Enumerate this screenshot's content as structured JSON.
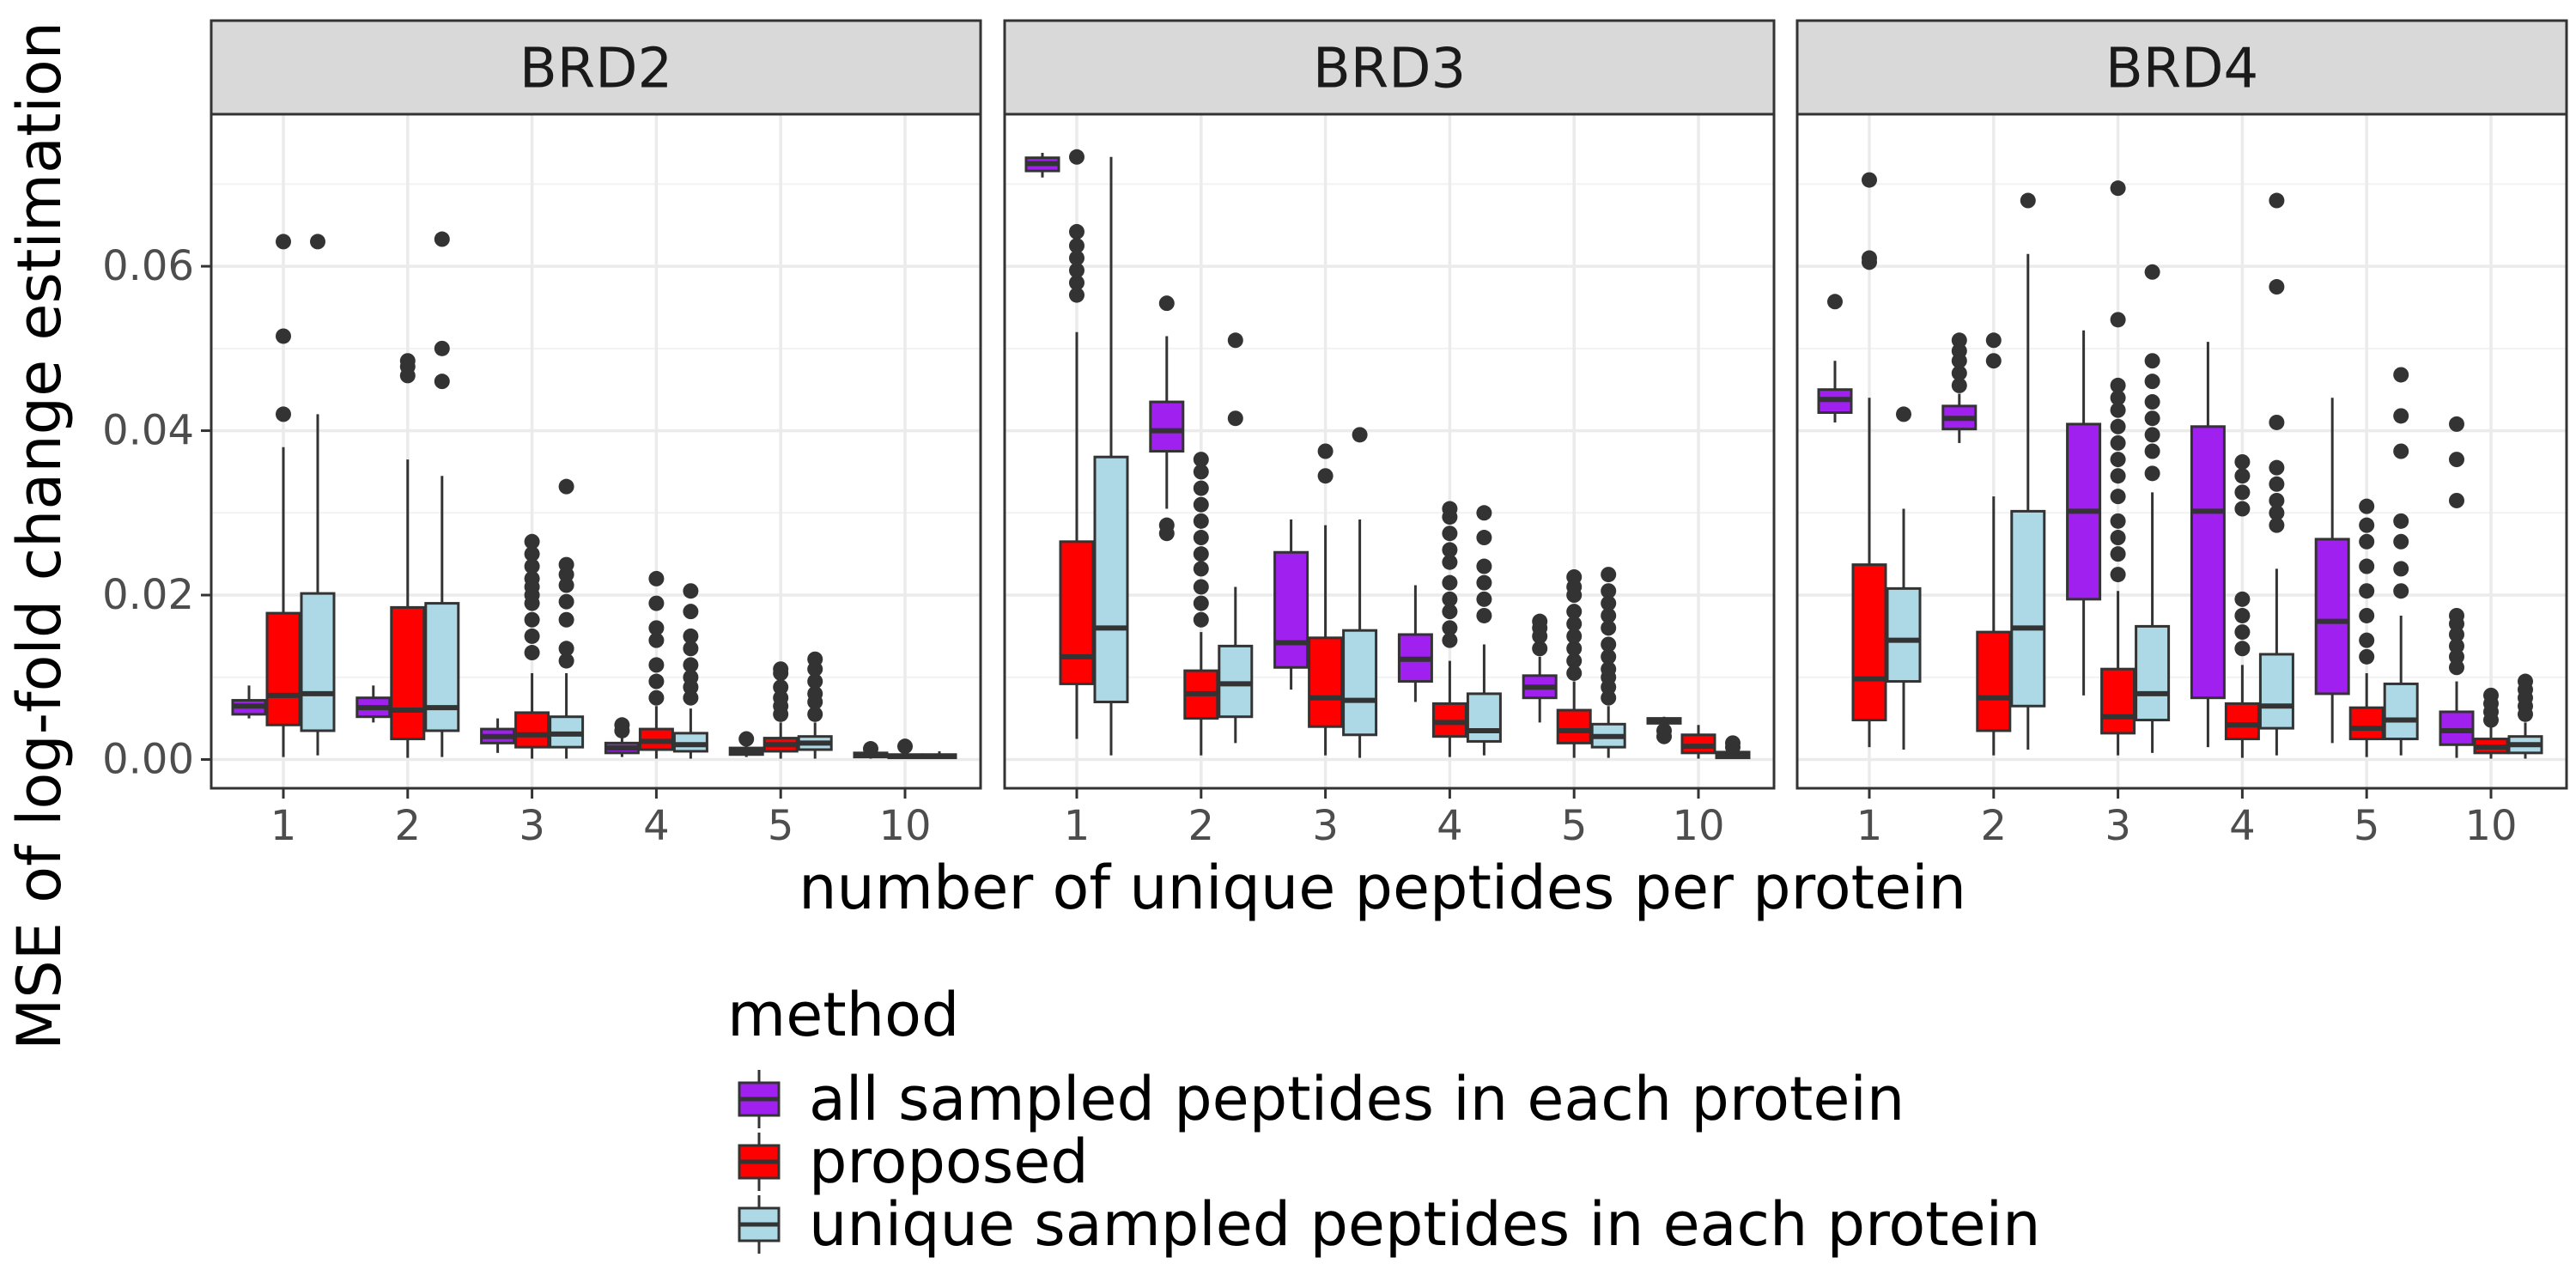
{
  "chart_data": {
    "type": "boxplot",
    "xlabel": "number of unique peptides per protein",
    "ylabel": "MSE of log-fold change estimation",
    "ylim": [
      -0.0035,
      0.0785
    ],
    "yticks": [
      0,
      0.02,
      0.04,
      0.06
    ],
    "ytick_labels": [
      "0.00",
      "0.02",
      "0.04",
      "0.06"
    ],
    "categories": [
      "1",
      "2",
      "3",
      "4",
      "5",
      "10"
    ],
    "legend": {
      "title": "method",
      "placement": "bottom",
      "entries": [
        {
          "label": "all sampled peptides in each protein",
          "color": "#A020F0"
        },
        {
          "label": "proposed",
          "color": "#FF0000"
        },
        {
          "label": "unique sampled peptides in each protein",
          "color": "#ADD8E6"
        }
      ]
    },
    "grid": true,
    "panels": [
      {
        "title": "BRD2",
        "boxes": [
          {
            "cat": "1",
            "method": 0,
            "q1": 0.0055,
            "med": 0.0065,
            "q3": 0.0072,
            "wlo": 0.005,
            "whi": 0.009,
            "out": []
          },
          {
            "cat": "1",
            "method": 1,
            "q1": 0.0042,
            "med": 0.0078,
            "q3": 0.0178,
            "wlo": 0.0003,
            "whi": 0.038,
            "out": [
              0.042,
              0.0515,
              0.063
            ]
          },
          {
            "cat": "1",
            "method": 2,
            "q1": 0.0035,
            "med": 0.008,
            "q3": 0.0202,
            "wlo": 0.0005,
            "whi": 0.042,
            "out": [
              0.063
            ]
          },
          {
            "cat": "2",
            "method": 0,
            "q1": 0.0052,
            "med": 0.0063,
            "q3": 0.0075,
            "wlo": 0.0045,
            "whi": 0.009,
            "out": []
          },
          {
            "cat": "2",
            "method": 1,
            "q1": 0.0025,
            "med": 0.006,
            "q3": 0.0185,
            "wlo": 0.0002,
            "whi": 0.0365,
            "out": [
              0.0467,
              0.0478,
              0.0485
            ]
          },
          {
            "cat": "2",
            "method": 2,
            "q1": 0.0035,
            "med": 0.0063,
            "q3": 0.019,
            "wlo": 0.0003,
            "whi": 0.0345,
            "out": [
              0.046,
              0.05,
              0.0633
            ]
          },
          {
            "cat": "3",
            "method": 0,
            "q1": 0.002,
            "med": 0.0028,
            "q3": 0.0037,
            "wlo": 0.0008,
            "whi": 0.005,
            "out": []
          },
          {
            "cat": "3",
            "method": 1,
            "q1": 0.0015,
            "med": 0.003,
            "q3": 0.0057,
            "wlo": 0.0001,
            "whi": 0.0105,
            "out": [
              0.013,
              0.015,
              0.017,
              0.019,
              0.02,
              0.021,
              0.022,
              0.0235,
              0.025,
              0.0265
            ]
          },
          {
            "cat": "3",
            "method": 2,
            "q1": 0.0015,
            "med": 0.0031,
            "q3": 0.0052,
            "wlo": 0.0001,
            "whi": 0.0105,
            "out": [
              0.012,
              0.0135,
              0.017,
              0.0192,
              0.0212,
              0.0225,
              0.0237,
              0.0332
            ]
          },
          {
            "cat": "4",
            "method": 0,
            "q1": 0.0008,
            "med": 0.0014,
            "q3": 0.002,
            "wlo": 0.0003,
            "whi": 0.003,
            "out": [
              0.0035,
              0.0042
            ]
          },
          {
            "cat": "4",
            "method": 1,
            "q1": 0.0012,
            "med": 0.0022,
            "q3": 0.0037,
            "wlo": 0.0001,
            "whi": 0.0065,
            "out": [
              0.0075,
              0.0095,
              0.0115,
              0.0145,
              0.016,
              0.019,
              0.022
            ]
          },
          {
            "cat": "4",
            "method": 2,
            "q1": 0.001,
            "med": 0.0018,
            "q3": 0.0032,
            "wlo": 0.0001,
            "whi": 0.0062,
            "out": [
              0.0075,
              0.0088,
              0.01,
              0.0115,
              0.0135,
              0.015,
              0.018,
              0.0205
            ]
          },
          {
            "cat": "5",
            "method": 0,
            "q1": 0.0006,
            "med": 0.001,
            "q3": 0.0014,
            "wlo": 0.0003,
            "whi": 0.002,
            "out": [
              0.0025
            ]
          },
          {
            "cat": "5",
            "method": 1,
            "q1": 0.001,
            "med": 0.0018,
            "q3": 0.0026,
            "wlo": 0.0001,
            "whi": 0.0045,
            "out": [
              0.0055,
              0.0065,
              0.0075,
              0.0088,
              0.0105,
              0.011
            ]
          },
          {
            "cat": "5",
            "method": 2,
            "q1": 0.0012,
            "med": 0.002,
            "q3": 0.0028,
            "wlo": 0.0001,
            "whi": 0.0045,
            "out": [
              0.0055,
              0.007,
              0.008,
              0.0095,
              0.011,
              0.0122
            ]
          },
          {
            "cat": "10",
            "method": 0,
            "q1": 0.0003,
            "med": 0.0005,
            "q3": 0.0008,
            "wlo": 0.0001,
            "whi": 0.0011,
            "out": [
              0.0013
            ]
          },
          {
            "cat": "10",
            "method": 1,
            "q1": 0.0002,
            "med": 0.0004,
            "q3": 0.0006,
            "wlo": 0.0001,
            "whi": 0.001,
            "out": [
              0.0016
            ]
          },
          {
            "cat": "10",
            "method": 2,
            "q1": 0.0002,
            "med": 0.0004,
            "q3": 0.0006,
            "wlo": 0.0001,
            "whi": 0.001,
            "out": []
          }
        ]
      },
      {
        "title": "BRD3",
        "boxes": [
          {
            "cat": "1",
            "method": 0,
            "q1": 0.0716,
            "med": 0.0725,
            "q3": 0.0732,
            "wlo": 0.0708,
            "whi": 0.0738,
            "out": []
          },
          {
            "cat": "1",
            "method": 1,
            "q1": 0.0092,
            "med": 0.0125,
            "q3": 0.0265,
            "wlo": 0.0025,
            "whi": 0.052,
            "out": [
              0.0565,
              0.058,
              0.0595,
              0.061,
              0.0625,
              0.0642,
              0.0733
            ]
          },
          {
            "cat": "1",
            "method": 2,
            "q1": 0.007,
            "med": 0.016,
            "q3": 0.0368,
            "wlo": 0.0005,
            "whi": 0.0733,
            "out": []
          },
          {
            "cat": "2",
            "method": 0,
            "q1": 0.0375,
            "med": 0.04,
            "q3": 0.0435,
            "wlo": 0.0305,
            "whi": 0.0515,
            "out": [
              0.0275,
              0.0285,
              0.0555
            ]
          },
          {
            "cat": "2",
            "method": 1,
            "q1": 0.005,
            "med": 0.008,
            "q3": 0.0108,
            "wlo": 0.0005,
            "whi": 0.0155,
            "out": [
              0.017,
              0.019,
              0.021,
              0.0232,
              0.025,
              0.027,
              0.029,
              0.031,
              0.033,
              0.035,
              0.0365
            ]
          },
          {
            "cat": "2",
            "method": 2,
            "q1": 0.0052,
            "med": 0.0092,
            "q3": 0.0138,
            "wlo": 0.002,
            "whi": 0.021,
            "out": [
              0.0415,
              0.051
            ]
          },
          {
            "cat": "3",
            "method": 0,
            "q1": 0.0112,
            "med": 0.0142,
            "q3": 0.0252,
            "wlo": 0.0085,
            "whi": 0.0292,
            "out": []
          },
          {
            "cat": "3",
            "method": 1,
            "q1": 0.004,
            "med": 0.0075,
            "q3": 0.0148,
            "wlo": 0.0005,
            "whi": 0.0285,
            "out": [
              0.0345,
              0.0375
            ]
          },
          {
            "cat": "3",
            "method": 2,
            "q1": 0.003,
            "med": 0.0072,
            "q3": 0.0157,
            "wlo": 0.0002,
            "whi": 0.0292,
            "out": [
              0.0395
            ]
          },
          {
            "cat": "4",
            "method": 0,
            "q1": 0.0095,
            "med": 0.0122,
            "q3": 0.0152,
            "wlo": 0.007,
            "whi": 0.0212,
            "out": []
          },
          {
            "cat": "4",
            "method": 1,
            "q1": 0.0028,
            "med": 0.0045,
            "q3": 0.0068,
            "wlo": 0.0003,
            "whi": 0.012,
            "out": [
              0.0145,
              0.016,
              0.018,
              0.0195,
              0.0215,
              0.024,
              0.0255,
              0.0275,
              0.0295,
              0.0305
            ]
          },
          {
            "cat": "4",
            "method": 2,
            "q1": 0.0022,
            "med": 0.0035,
            "q3": 0.008,
            "wlo": 0.0005,
            "whi": 0.014,
            "out": [
              0.0175,
              0.0195,
              0.0215,
              0.0235,
              0.027,
              0.03
            ]
          },
          {
            "cat": "5",
            "method": 0,
            "q1": 0.0075,
            "med": 0.0088,
            "q3": 0.0102,
            "wlo": 0.0045,
            "whi": 0.0125,
            "out": [
              0.0135,
              0.015,
              0.016,
              0.0168
            ]
          },
          {
            "cat": "5",
            "method": 1,
            "q1": 0.002,
            "med": 0.0035,
            "q3": 0.006,
            "wlo": 0.0002,
            "whi": 0.0095,
            "out": [
              0.0105,
              0.012,
              0.0135,
              0.015,
              0.0165,
              0.018,
              0.02,
              0.021,
              0.0222
            ]
          },
          {
            "cat": "5",
            "method": 2,
            "q1": 0.0015,
            "med": 0.0028,
            "q3": 0.0043,
            "wlo": 0.0002,
            "whi": 0.0065,
            "out": [
              0.0075,
              0.0088,
              0.01,
              0.011,
              0.0125,
              0.014,
              0.016,
              0.0175,
              0.019,
              0.0205,
              0.0225
            ]
          },
          {
            "cat": "10",
            "method": 0,
            "q1": 0.0044,
            "med": 0.0047,
            "q3": 0.005,
            "wlo": 0.0043,
            "whi": 0.0052,
            "out": [
              0.0028,
              0.0035
            ]
          },
          {
            "cat": "10",
            "method": 1,
            "q1": 0.0008,
            "med": 0.0016,
            "q3": 0.003,
            "wlo": 0.0001,
            "whi": 0.0042,
            "out": []
          },
          {
            "cat": "10",
            "method": 2,
            "q1": 0.0002,
            "med": 0.0005,
            "q3": 0.0009,
            "wlo": 0.0001,
            "whi": 0.0012,
            "out": [
              0.0015,
              0.002
            ]
          }
        ]
      },
      {
        "title": "BRD4",
        "boxes": [
          {
            "cat": "1",
            "method": 0,
            "q1": 0.0422,
            "med": 0.0438,
            "q3": 0.045,
            "wlo": 0.041,
            "whi": 0.0485,
            "out": [
              0.0557
            ]
          },
          {
            "cat": "1",
            "method": 1,
            "q1": 0.0048,
            "med": 0.0098,
            "q3": 0.0237,
            "wlo": 0.0015,
            "whi": 0.044,
            "out": [
              0.0605,
              0.061,
              0.0705
            ]
          },
          {
            "cat": "1",
            "method": 2,
            "q1": 0.0095,
            "med": 0.0145,
            "q3": 0.0208,
            "wlo": 0.0012,
            "whi": 0.0305,
            "out": [
              0.042
            ]
          },
          {
            "cat": "2",
            "method": 0,
            "q1": 0.0402,
            "med": 0.0415,
            "q3": 0.043,
            "wlo": 0.0385,
            "whi": 0.0445,
            "out": [
              0.0455,
              0.047,
              0.0485,
              0.0497,
              0.051
            ]
          },
          {
            "cat": "2",
            "method": 1,
            "q1": 0.0035,
            "med": 0.0075,
            "q3": 0.0155,
            "wlo": 0.0005,
            "whi": 0.032,
            "out": [
              0.0485,
              0.051
            ]
          },
          {
            "cat": "2",
            "method": 2,
            "q1": 0.0065,
            "med": 0.016,
            "q3": 0.0302,
            "wlo": 0.0012,
            "whi": 0.0615,
            "out": [
              0.068
            ]
          },
          {
            "cat": "3",
            "method": 0,
            "q1": 0.0195,
            "med": 0.0302,
            "q3": 0.0408,
            "wlo": 0.0078,
            "whi": 0.0522,
            "out": []
          },
          {
            "cat": "3",
            "method": 1,
            "q1": 0.0032,
            "med": 0.0052,
            "q3": 0.011,
            "wlo": 0.0005,
            "whi": 0.0205,
            "out": [
              0.0225,
              0.025,
              0.027,
              0.029,
              0.032,
              0.0345,
              0.0365,
              0.0385,
              0.0405,
              0.0425,
              0.044,
              0.0455,
              0.0535,
              0.0695
            ]
          },
          {
            "cat": "3",
            "method": 2,
            "q1": 0.0048,
            "med": 0.008,
            "q3": 0.0162,
            "wlo": 0.0008,
            "whi": 0.0325,
            "out": [
              0.0348,
              0.0375,
              0.0395,
              0.0415,
              0.0435,
              0.046,
              0.0485,
              0.0593
            ]
          },
          {
            "cat": "4",
            "method": 0,
            "q1": 0.0075,
            "med": 0.0302,
            "q3": 0.0405,
            "wlo": 0.0015,
            "whi": 0.0508,
            "out": []
          },
          {
            "cat": "4",
            "method": 1,
            "q1": 0.0025,
            "med": 0.0042,
            "q3": 0.0068,
            "wlo": 0.0002,
            "whi": 0.0115,
            "out": [
              0.0135,
              0.0155,
              0.0175,
              0.0195,
              0.0305,
              0.0325,
              0.0345,
              0.0362
            ]
          },
          {
            "cat": "4",
            "method": 2,
            "q1": 0.0038,
            "med": 0.0065,
            "q3": 0.0128,
            "wlo": 0.0005,
            "whi": 0.0232,
            "out": [
              0.0285,
              0.03,
              0.0315,
              0.0335,
              0.0355,
              0.041,
              0.0575,
              0.068
            ]
          },
          {
            "cat": "5",
            "method": 0,
            "q1": 0.008,
            "med": 0.0168,
            "q3": 0.0268,
            "wlo": 0.002,
            "whi": 0.044,
            "out": []
          },
          {
            "cat": "5",
            "method": 1,
            "q1": 0.0025,
            "med": 0.0038,
            "q3": 0.0063,
            "wlo": 0.0003,
            "whi": 0.0105,
            "out": [
              0.0125,
              0.0145,
              0.0175,
              0.0205,
              0.0235,
              0.0265,
              0.0285,
              0.0308
            ]
          },
          {
            "cat": "5",
            "method": 2,
            "q1": 0.0025,
            "med": 0.0048,
            "q3": 0.0092,
            "wlo": 0.0005,
            "whi": 0.0175,
            "out": [
              0.0205,
              0.0232,
              0.0265,
              0.029,
              0.0375,
              0.0418,
              0.0468
            ]
          },
          {
            "cat": "10",
            "method": 0,
            "q1": 0.0018,
            "med": 0.0035,
            "q3": 0.0058,
            "wlo": 0.0002,
            "whi": 0.0095,
            "out": [
              0.0112,
              0.0125,
              0.0138,
              0.0152,
              0.0165,
              0.0175,
              0.0315,
              0.0365,
              0.0408
            ]
          },
          {
            "cat": "10",
            "method": 1,
            "q1": 0.0008,
            "med": 0.0015,
            "q3": 0.0025,
            "wlo": 0.0001,
            "whi": 0.004,
            "out": [
              0.0048,
              0.0058,
              0.0068,
              0.0078
            ]
          },
          {
            "cat": "10",
            "method": 2,
            "q1": 0.0008,
            "med": 0.0018,
            "q3": 0.0028,
            "wlo": 0.0001,
            "whi": 0.0045,
            "out": [
              0.0055,
              0.0065,
              0.0075,
              0.0085,
              0.0095
            ]
          }
        ]
      }
    ]
  }
}
